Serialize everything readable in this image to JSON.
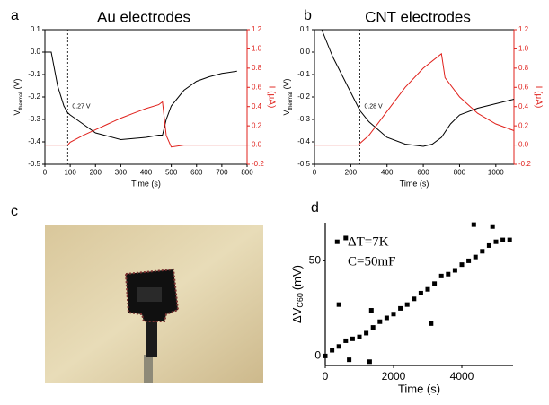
{
  "chart_data": [
    {
      "type": "line",
      "label": "a",
      "title": "Au electrodes",
      "xlabel": "Time (s)",
      "ylabel": {
        "main": "V",
        "sub": "thermal",
        "unit": "(V)"
      },
      "y2label": "I (μA)",
      "xlim": [
        0,
        800
      ],
      "xticks": [
        0,
        100,
        200,
        300,
        400,
        500,
        600,
        700,
        800
      ],
      "ylim": [
        -0.5,
        0.1
      ],
      "yticks": [
        -0.5,
        -0.4,
        -0.3,
        -0.2,
        -0.1,
        {
          "value": 0,
          "label": "0.0"
        },
        0.1
      ],
      "y2lim": [
        -0.2,
        1.2
      ],
      "y2ticks": [
        -0.2,
        {
          "value": 0,
          "label": "0.0"
        },
        0.2,
        0.4,
        0.6,
        0.8,
        {
          "value": 1,
          "label": "1.0"
        },
        1.2
      ],
      "vline": 90,
      "annotation": "0.27 V",
      "series": [
        {
          "color": "#000000",
          "x": [
            0,
            25,
            50,
            75,
            90,
            100,
            150,
            200,
            300,
            400,
            450,
            465,
            480,
            500,
            550,
            600,
            650,
            700,
            760
          ],
          "values": [
            0,
            0,
            -0.15,
            -0.24,
            -0.27,
            -0.28,
            -0.32,
            -0.36,
            -0.39,
            -0.38,
            -0.37,
            -0.37,
            -0.3,
            -0.24,
            -0.17,
            -0.13,
            -0.11,
            -0.095,
            -0.085
          ]
        },
        {
          "color": "#e0201b",
          "axis": "y2",
          "x": [
            0,
            90,
            100,
            150,
            200,
            250,
            300,
            350,
            400,
            450,
            465,
            480,
            500,
            550,
            800
          ],
          "values": [
            0,
            0,
            0.03,
            0.1,
            0.16,
            0.22,
            0.28,
            0.33,
            0.38,
            0.42,
            0.45,
            0.1,
            -0.02,
            0,
            0
          ]
        }
      ]
    },
    {
      "type": "line",
      "label": "b",
      "title": "CNT electrodes",
      "xlabel": "Time (s)",
      "ylabel": {
        "main": "V",
        "sub": "thermal",
        "unit": "(V)"
      },
      "y2label": "I (μA)",
      "xlim": [
        0,
        1100
      ],
      "xticks": [
        0,
        200,
        400,
        600,
        800,
        1000
      ],
      "ylim": [
        -0.5,
        0.1
      ],
      "yticks": [
        -0.5,
        -0.4,
        -0.3,
        -0.2,
        -0.1,
        {
          "value": 0,
          "label": "0.0"
        },
        0.1
      ],
      "y2lim": [
        -0.2,
        1.2
      ],
      "y2ticks": [
        -0.2,
        {
          "value": 0,
          "label": "0.0"
        },
        0.2,
        0.4,
        0.6,
        0.8,
        {
          "value": 1,
          "label": "1.0"
        },
        1.2
      ],
      "vline": 250,
      "annotation": "0.28 V",
      "series": [
        {
          "color": "#000000",
          "x": [
            40,
            100,
            150,
            200,
            250,
            300,
            400,
            500,
            600,
            650,
            700,
            750,
            800,
            900,
            1000,
            1100
          ],
          "values": [
            0.1,
            -0.02,
            -0.1,
            -0.18,
            -0.26,
            -0.31,
            -0.38,
            -0.41,
            -0.42,
            -0.41,
            -0.38,
            -0.32,
            -0.28,
            -0.25,
            -0.23,
            -0.21
          ]
        },
        {
          "color": "#e0201b",
          "axis": "y2",
          "x": [
            0,
            240,
            300,
            400,
            500,
            600,
            700,
            720,
            800,
            900,
            1000,
            1100
          ],
          "values": [
            0,
            0,
            0.1,
            0.35,
            0.6,
            0.8,
            0.95,
            0.7,
            0.5,
            0.33,
            0.22,
            0.15
          ]
        }
      ]
    },
    {
      "type": "scatter",
      "label": "d",
      "xlabel": "Time (s)",
      "ylabel": {
        "main": "ΔV",
        "sub": "C60",
        "unit": "(mV)"
      },
      "annotations": [
        "ΔT=7K",
        "C=50mF"
      ],
      "xlim": [
        0,
        5500
      ],
      "xticks": [
        0,
        2000,
        4000
      ],
      "ylim": [
        -5,
        70
      ],
      "yticks": [
        0,
        50
      ],
      "series": [
        {
          "color": "#000000",
          "x": [
            0,
            200,
            400,
            600,
            800,
            1000,
            1200,
            1400,
            1600,
            1800,
            2000,
            2200,
            2400,
            2600,
            2800,
            3000,
            3200,
            3400,
            3600,
            3800,
            4000,
            4200,
            4400,
            4600,
            4800,
            5000,
            5200,
            5400,
            350,
            400,
            600,
            700,
            1300,
            1350,
            3100,
            4350,
            4900
          ],
          "values": [
            0,
            3,
            5,
            8,
            9,
            10,
            12,
            15,
            18,
            20,
            22,
            25,
            27,
            30,
            33,
            35,
            38,
            42,
            43,
            45,
            48,
            50,
            52,
            55,
            58,
            60,
            61,
            61,
            60,
            27,
            62,
            -2,
            -3,
            24,
            17,
            69,
            68
          ]
        }
      ]
    }
  ],
  "photo_panel": {
    "label": "c"
  }
}
